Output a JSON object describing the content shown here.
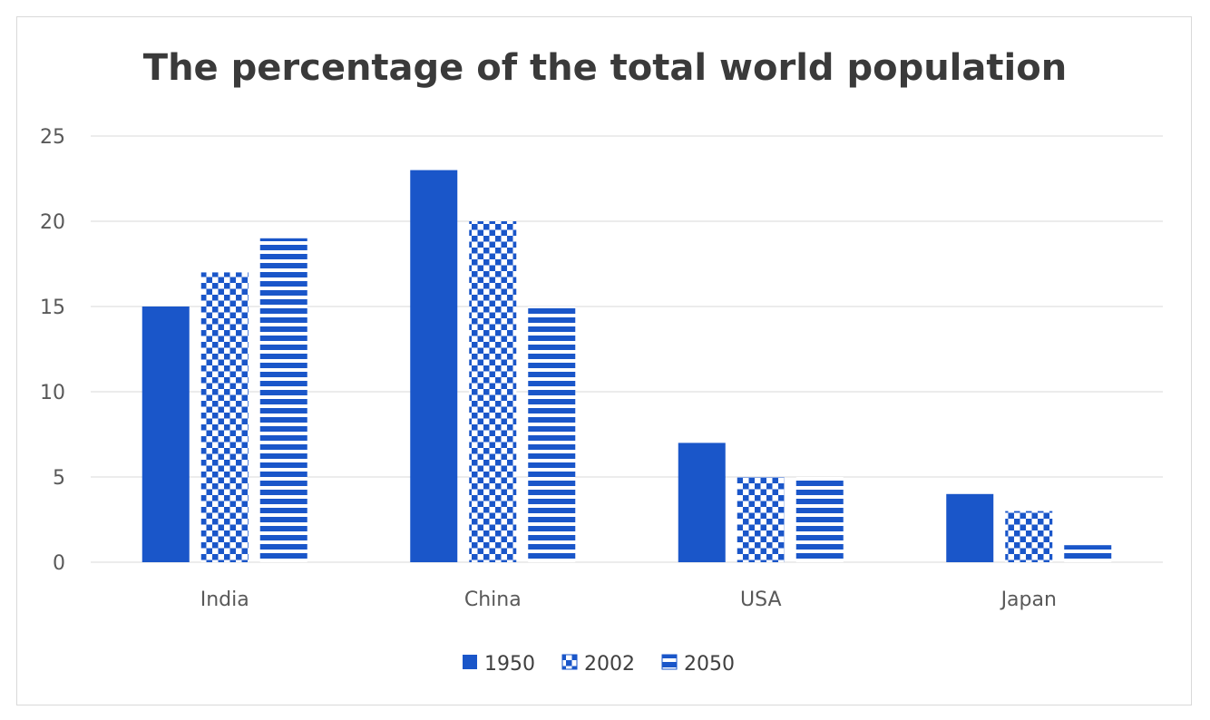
{
  "chart_data": {
    "type": "bar",
    "title": "The percentage of the total world population",
    "categories": [
      "India",
      "China",
      "USA",
      "Japan"
    ],
    "series": [
      {
        "name": "1950",
        "values": [
          15,
          23,
          7,
          4
        ],
        "pattern": "solid"
      },
      {
        "name": "2002",
        "values": [
          17,
          20,
          5,
          3
        ],
        "pattern": "checker"
      },
      {
        "name": "2050",
        "values": [
          19,
          15,
          5,
          1
        ],
        "pattern": "horizontal-stripes"
      }
    ],
    "yticks": [
      "0",
      "5",
      "10",
      "15",
      "20",
      "25"
    ],
    "ylim": [
      0,
      25
    ],
    "xlabel": "",
    "ylabel": "",
    "grid": true,
    "legend": "bottom-center",
    "color": "#1a56c9"
  }
}
